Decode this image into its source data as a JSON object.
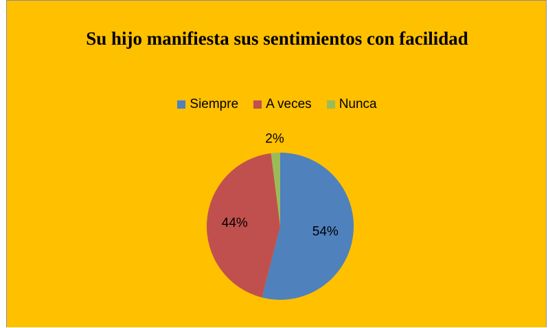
{
  "chart_data": {
    "type": "pie",
    "title": "Su hijo manifiesta sus sentimientos con facilidad",
    "categories": [
      "Siempre",
      "A veces",
      "Nunca"
    ],
    "values": [
      54,
      44,
      2
    ],
    "value_labels": [
      "54%",
      "44%",
      "2%"
    ],
    "colors": [
      "#4F81BD",
      "#C0504D",
      "#9BBB59"
    ],
    "legend": "top"
  }
}
